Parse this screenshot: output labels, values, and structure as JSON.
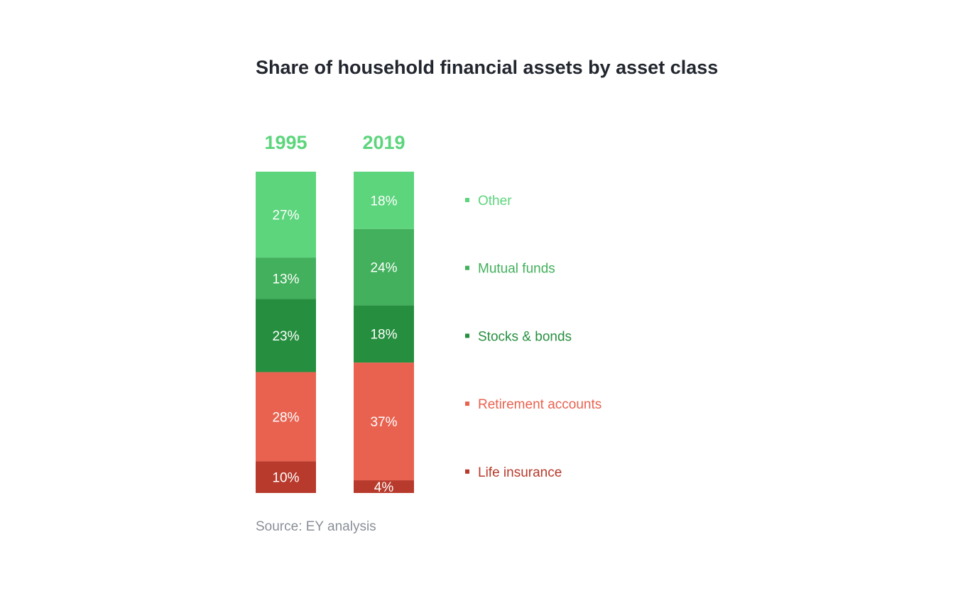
{
  "title": "Share of household financial assets by asset class",
  "source": "Source: EY analysis",
  "chart_data": {
    "type": "bar",
    "stacked": true,
    "unit": "%",
    "categories": [
      "1995",
      "2019"
    ],
    "series": [
      {
        "name": "Other",
        "color": "#5cd57c",
        "values": [
          27,
          18
        ]
      },
      {
        "name": "Mutual funds",
        "color": "#42b05c",
        "values": [
          13,
          24
        ]
      },
      {
        "name": "Stocks & bonds",
        "color": "#268f3f",
        "values": [
          23,
          18
        ]
      },
      {
        "name": "Retirement accounts",
        "color": "#e96250",
        "values": [
          28,
          37
        ]
      },
      {
        "name": "Life insurance",
        "color": "#b83a2c",
        "values": [
          10,
          4
        ]
      }
    ],
    "legend_position": "right",
    "year_label_color": "#5cd57c"
  }
}
